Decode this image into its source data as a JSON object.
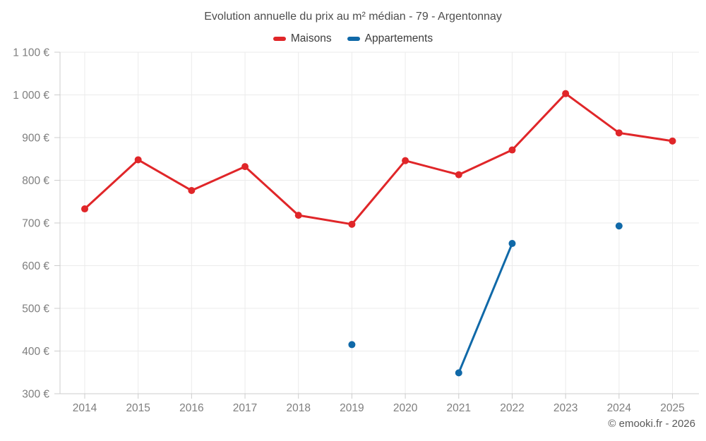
{
  "header": {
    "title": "Evolution annuelle du prix au m² médian - 79 - Argentonnay"
  },
  "legend": {
    "items": [
      {
        "label": "Maisons",
        "color": "#e02629"
      },
      {
        "label": "Appartements",
        "color": "#1069a8"
      }
    ]
  },
  "chart_data": {
    "type": "line",
    "title": "Evolution annuelle du prix au m² médian - 79 - Argentonnay",
    "x": [
      2014,
      2015,
      2016,
      2017,
      2018,
      2019,
      2020,
      2021,
      2022,
      2023,
      2024,
      2025
    ],
    "series": [
      {
        "name": "Maisons",
        "color": "#e02629",
        "values": [
          733,
          848,
          776,
          832,
          718,
          697,
          846,
          813,
          871,
          1003,
          911,
          892
        ]
      },
      {
        "name": "Appartements",
        "color": "#1069a8",
        "values": [
          null,
          null,
          null,
          null,
          null,
          415,
          null,
          349,
          652,
          null,
          693,
          null
        ]
      }
    ],
    "xlabel": "",
    "ylabel": "",
    "ylim": [
      300,
      1100
    ],
    "ytick_step": 100,
    "ytick_suffix": " €",
    "grid": true,
    "legend_position": "top",
    "colors": {
      "grid": "#ebebeb",
      "axis": "#cccccc",
      "tick_text": "#7e7e7e"
    }
  },
  "footer": {
    "copyright": "© emooki.fr - 2026"
  }
}
